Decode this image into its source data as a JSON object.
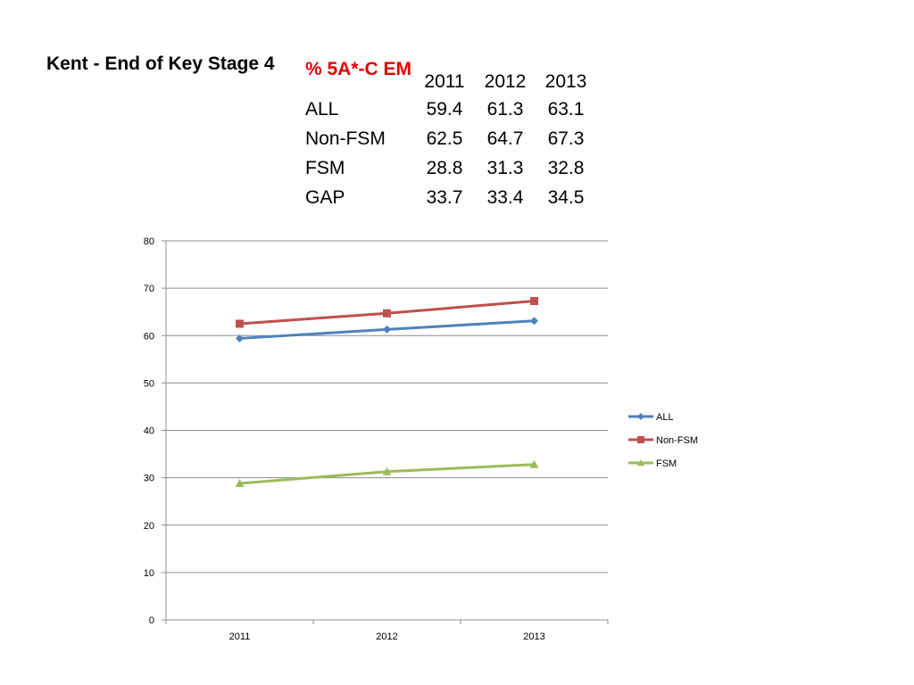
{
  "title": "Kent - End of Key Stage 4",
  "table": {
    "measure": "% 5A*-C EM",
    "years": [
      "2011",
      "2012",
      "2013"
    ],
    "rows": [
      {
        "label": "ALL",
        "values": [
          "59.4",
          "61.3",
          "63.1"
        ]
      },
      {
        "label": "Non-FSM",
        "values": [
          "62.5",
          "64.7",
          "67.3"
        ]
      },
      {
        "label": "FSM",
        "values": [
          "28.8",
          "31.3",
          "32.8"
        ]
      },
      {
        "label": "GAP",
        "values": [
          "33.7",
          "33.4",
          "34.5"
        ]
      }
    ]
  },
  "chart_data": {
    "type": "line",
    "categories": [
      "2011",
      "2012",
      "2013"
    ],
    "series": [
      {
        "name": "ALL",
        "values": [
          59.4,
          61.3,
          63.1
        ],
        "color": "#4f81bd",
        "marker": "diamond"
      },
      {
        "name": "Non-FSM",
        "values": [
          62.5,
          64.7,
          67.3
        ],
        "color": "#c0504d",
        "marker": "square"
      },
      {
        "name": "FSM",
        "values": [
          28.8,
          31.3,
          32.8
        ],
        "color": "#9bbb59",
        "marker": "triangle"
      }
    ],
    "ylim": [
      0,
      80
    ],
    "yticks": [
      0,
      10,
      20,
      30,
      40,
      50,
      60,
      70,
      80
    ],
    "grid": true,
    "legend": "right"
  }
}
